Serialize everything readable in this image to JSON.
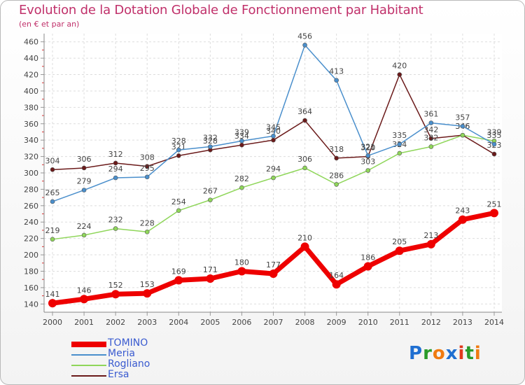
{
  "title": "Evolution de la Dotation Globale de Fonctionnement par Habitant",
  "subtitle": "(en € et par an)",
  "logo": {
    "text": "Proxiti",
    "letters": [
      "P",
      "r",
      "o",
      "x",
      "i",
      "t",
      "i"
    ],
    "colors": [
      "#1f6fd1",
      "#2a9b2a",
      "#f07b10",
      "#1f6fd1",
      "#e03a1e",
      "#2a9b2a",
      "#f07b10"
    ]
  },
  "chart_data": {
    "type": "line",
    "x": [
      "2000",
      "2001",
      "2002",
      "2003",
      "2004",
      "2005",
      "2006",
      "2007",
      "2008",
      "2009",
      "2010",
      "2011",
      "2012",
      "2013",
      "2014"
    ],
    "ylim": [
      130,
      470
    ],
    "yticks": [
      140,
      160,
      180,
      200,
      220,
      240,
      260,
      280,
      300,
      320,
      340,
      360,
      380,
      400,
      420,
      440,
      460
    ],
    "grid": true,
    "legend_position": "bottom-left",
    "series": [
      {
        "name": "Ersa",
        "color": "#6b1a1a",
        "values": [
          304,
          306,
          312,
          308,
          321,
          328,
          334,
          340,
          364,
          318,
          320,
          420,
          342,
          346,
          323
        ]
      },
      {
        "name": "Rogliano",
        "color": "#8fd65a",
        "values": [
          219,
          224,
          232,
          228,
          254,
          267,
          282,
          294,
          306,
          286,
          303,
          324,
          332,
          346,
          339
        ]
      },
      {
        "name": "Meria",
        "color": "#4a8fcc",
        "values": [
          265,
          279,
          294,
          295,
          328,
          332,
          339,
          345,
          456,
          413,
          321,
          335,
          361,
          357,
          335
        ]
      },
      {
        "name": "TOMINO",
        "color": "#ee0000",
        "values": [
          141,
          146,
          152,
          153,
          169,
          171,
          180,
          177,
          210,
          164,
          186,
          205,
          213,
          243,
          251
        ]
      }
    ]
  }
}
